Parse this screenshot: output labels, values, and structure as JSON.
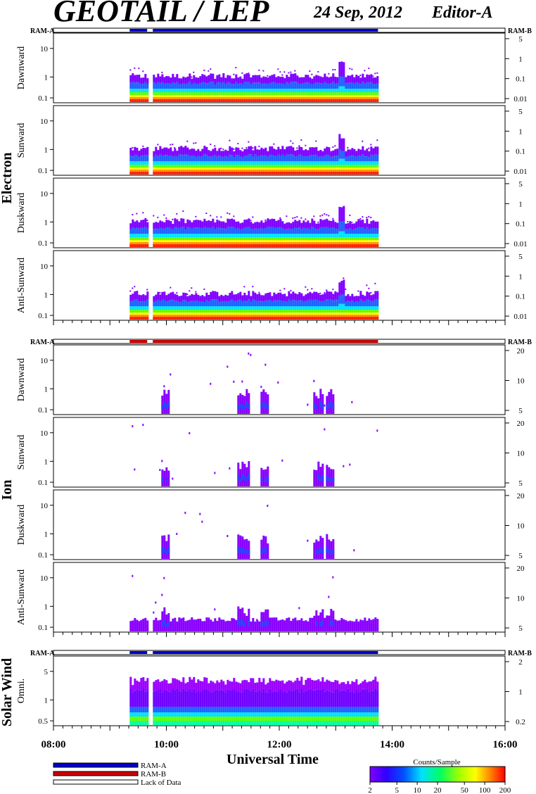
{
  "header": {
    "title": "GEOTAIL / LEP",
    "date": "24 Sep, 2012",
    "editor": "Editor-A"
  },
  "chart_data": {
    "type": "heatmap",
    "xlabel": "Universal Time",
    "x_ticks": [
      "08:00",
      "10:00",
      "12:00",
      "14:00",
      "16:00"
    ],
    "x_range_hours": [
      8,
      16
    ],
    "data_coverage_hours": [
      9.35,
      13.75
    ],
    "data_gap_hours": [
      [
        9.66,
        9.76
      ]
    ],
    "left_scale_ticks": [
      "10",
      "1",
      "0.1"
    ],
    "solar_wind_left_ticks": [
      "5",
      "1",
      "0.5"
    ],
    "groups": [
      {
        "name": "Electron",
        "mode_left": "RAM-A",
        "mode_right": "RAM-B",
        "mode_color": "#0000cc",
        "right_ticks": [
          "5",
          "1",
          "0.1",
          "0.01"
        ],
        "panels": [
          "Dawnward",
          "Sunward",
          "Duskward",
          "Anti-Sunward"
        ]
      },
      {
        "name": "Ion",
        "mode_left": "RAM-A",
        "mode_right": "RAM-B",
        "mode_color": "#cc0000",
        "right_ticks": [
          "20",
          "10",
          "5"
        ],
        "panels": [
          "Dawnward",
          "Sunward",
          "Duskward",
          "Anti-Sunward"
        ]
      },
      {
        "name": "Solar Wind",
        "mode_left": "RAM-A",
        "mode_right": "RAM-B",
        "mode_color": "#0000cc",
        "right_ticks": [
          "2",
          "1",
          "0.2"
        ],
        "panels": [
          "Omni."
        ]
      }
    ],
    "legend": {
      "items": [
        {
          "label": "RAM-A",
          "color": "#0000cc"
        },
        {
          "label": "RAM-B",
          "color": "#cc0000"
        },
        {
          "label": "Lack of Data",
          "color": "#ffffff"
        }
      ]
    },
    "colorbar": {
      "title": "Counts/Sample",
      "ticks": [
        "2",
        "5",
        "10",
        "20",
        "50",
        "100",
        "200"
      ],
      "range": [
        2,
        200
      ],
      "scale": "log"
    }
  }
}
